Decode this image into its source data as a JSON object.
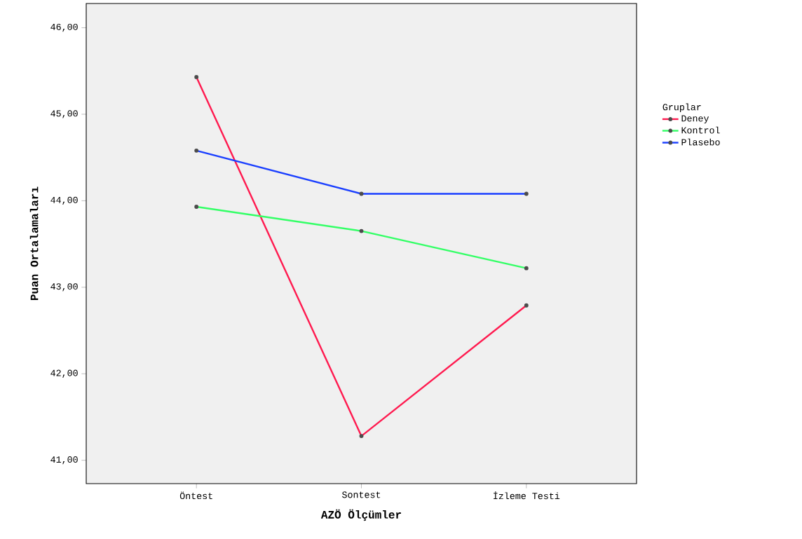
{
  "chart_data": {
    "type": "line",
    "xlabel": "AZÖ Ölçümler",
    "ylabel": "Puan Ortalamaları",
    "legend_title": "Gruplar",
    "categories": [
      "Öntest",
      "Sontest",
      "İzleme Testi"
    ],
    "series": [
      {
        "name": "Deney",
        "color": "#ff1a4f",
        "values": [
          45.43,
          41.28,
          42.79
        ]
      },
      {
        "name": "Kontrol",
        "color": "#33ff66",
        "values": [
          43.93,
          43.65,
          43.22
        ]
      },
      {
        "name": "Plasebo",
        "color": "#1a3fff",
        "values": [
          44.58,
          44.08,
          44.08
        ]
      }
    ],
    "ylim": [
      40.73,
      46.28
    ],
    "yticks": [
      {
        "value": 41,
        "label": "41,00"
      },
      {
        "value": 42,
        "label": "42,00"
      },
      {
        "value": 43,
        "label": "43,00"
      },
      {
        "value": 44,
        "label": "44,00"
      },
      {
        "value": 45,
        "label": "45,00"
      },
      {
        "value": 46,
        "label": "46,00"
      }
    ],
    "grid": false,
    "legend": "right",
    "marker": "circle",
    "line_style": "solid"
  }
}
